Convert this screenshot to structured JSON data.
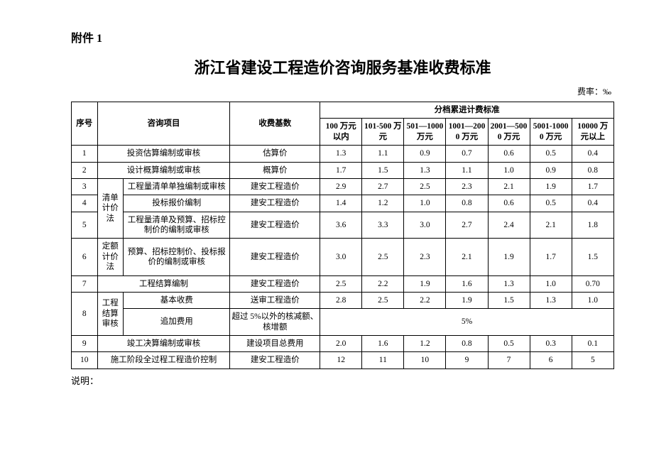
{
  "attachment_label": "附件 1",
  "title": "浙江省建设工程造价咨询服务基准收费标准",
  "rate_unit": "费率：‰",
  "footer_note": "说明：",
  "header": {
    "seq": "序号",
    "item": "咨询项目",
    "base": "收费基数",
    "tiered": "分档累进计费标准",
    "tiers": [
      "100 万元以内",
      "101-500 万元",
      "501—1000 万元",
      "1001—2000 万元",
      "2001—5000 万元",
      "5001-10000 万元",
      "10000 万元以上"
    ]
  },
  "groups": {
    "list_method": "清单计价法",
    "quota_method": "定额计价法",
    "settlement": "工程结算审核"
  },
  "rows": [
    {
      "seq": "1",
      "item": "投资估算编制或审核",
      "base": "估算价",
      "vals": [
        "1.3",
        "1.1",
        "0.9",
        "0.7",
        "0.6",
        "0.5",
        "0.4"
      ]
    },
    {
      "seq": "2",
      "item": "设计概算编制或审核",
      "base": "概算价",
      "vals": [
        "1.7",
        "1.5",
        "1.3",
        "1.1",
        "1.0",
        "0.9",
        "0.8"
      ]
    },
    {
      "seq": "3",
      "item": "工程量清单单独编制或审核",
      "base": "建安工程造价",
      "vals": [
        "2.9",
        "2.7",
        "2.5",
        "2.3",
        "2.1",
        "1.9",
        "1.7"
      ]
    },
    {
      "seq": "4",
      "item": "投标报价编制",
      "base": "建安工程造价",
      "vals": [
        "1.4",
        "1.2",
        "1.0",
        "0.8",
        "0.6",
        "0.5",
        "0.4"
      ]
    },
    {
      "seq": "5",
      "item": "工程量清单及预算、招标控制价的编制或审核",
      "base": "建安工程造价",
      "vals": [
        "3.6",
        "3.3",
        "3.0",
        "2.7",
        "2.4",
        "2.1",
        "1.8"
      ]
    },
    {
      "seq": "6",
      "item": "预算、招标控制价、投标报价的编制或审核",
      "base": "建安工程造价",
      "vals": [
        "3.0",
        "2.5",
        "2.3",
        "2.1",
        "1.9",
        "1.7",
        "1.5"
      ]
    },
    {
      "seq": "7",
      "item": "工程结算编制",
      "base": "建安工程造价",
      "vals": [
        "2.5",
        "2.2",
        "1.9",
        "1.6",
        "1.3",
        "1.0",
        "0.70"
      ]
    },
    {
      "seq": "8a",
      "item": "基本收费",
      "base": "送审工程造价",
      "vals": [
        "2.8",
        "2.5",
        "2.2",
        "1.9",
        "1.5",
        "1.3",
        "1.0"
      ]
    },
    {
      "seq": "8b",
      "item": "追加费用",
      "base": "超过 5%以外的核减额、核增额",
      "merged": "5%"
    },
    {
      "seq": "9",
      "item": "竣工决算编制或审核",
      "base": "建设项目总费用",
      "vals": [
        "2.0",
        "1.6",
        "1.2",
        "0.8",
        "0.5",
        "0.3",
        "0.1"
      ]
    },
    {
      "seq": "10",
      "item": "施工阶段全过程工程造价控制",
      "base": "建安工程造价",
      "vals": [
        "12",
        "11",
        "10",
        "9",
        "7",
        "6",
        "5"
      ]
    }
  ],
  "row8_seq": "8"
}
